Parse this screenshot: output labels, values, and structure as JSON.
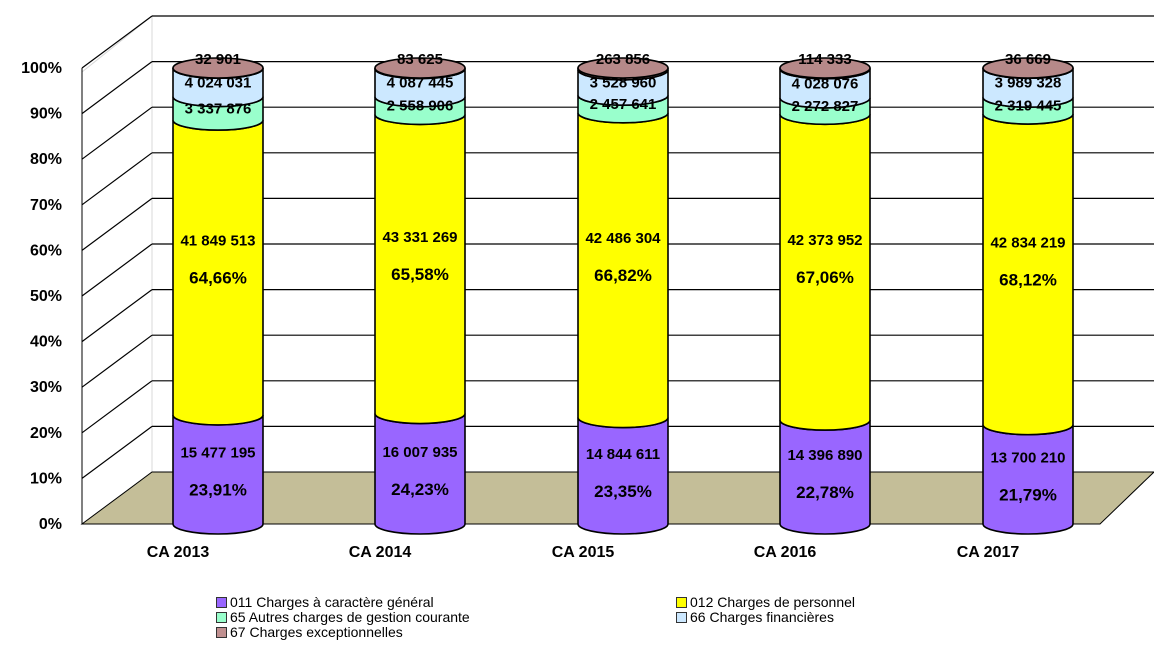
{
  "chart_data": {
    "type": "bar",
    "stacked": "percent",
    "style": "3d-cylinder",
    "categories": [
      "CA 2013",
      "CA 2014",
      "CA 2015",
      "CA 2016",
      "CA 2017"
    ],
    "y_ticks": [
      "0%",
      "10%",
      "20%",
      "30%",
      "40%",
      "50%",
      "60%",
      "70%",
      "80%",
      "90%",
      "100%"
    ],
    "ylim": [
      0,
      100
    ],
    "grid": true,
    "legend_position": "bottom",
    "series": [
      {
        "name": "011 Charges à caractère général",
        "color": "#9966ff",
        "values": [
          15477195,
          16007935,
          14844611,
          14396890,
          13700210
        ],
        "value_labels": [
          "15 477 195",
          "16 007 935",
          "14 844 611",
          "14 396 890",
          "13 700 210"
        ],
        "percent_labels": [
          "23,91%",
          "24,23%",
          "23,35%",
          "22,78%",
          "21,79%"
        ]
      },
      {
        "name": "012 Charges de personnel",
        "color": "#ffff00",
        "values": [
          41849513,
          43331269,
          42486304,
          42373952,
          42834219
        ],
        "value_labels": [
          "41 849 513",
          "43 331 269",
          "42 486 304",
          "42 373 952",
          "42 834 219"
        ],
        "percent_labels": [
          "64,66%",
          "65,58%",
          "66,82%",
          "67,06%",
          "68,12%"
        ]
      },
      {
        "name": "65 Autres charges de gestion courante",
        "color": "#99ffcc",
        "values": [
          3337876,
          2558906,
          2457641,
          2272827,
          2319445
        ],
        "value_labels": [
          "3 337 876",
          "2 558 906",
          "2 457 641",
          "2 272 827",
          "2 319 445"
        ]
      },
      {
        "name": "66 Charges financières",
        "color": "#cce8ff",
        "values": [
          4024031,
          4087445,
          3528960,
          4028076,
          3989328
        ],
        "value_labels": [
          "4 024 031",
          "4 087 445",
          "3 528 960",
          "4 028 076",
          "3 989 328"
        ]
      },
      {
        "name": "67 Charges exceptionnelles",
        "color": "#c09090",
        "values": [
          32901,
          83625,
          263856,
          114333,
          36669
        ],
        "value_labels": [
          "32 901",
          "83 625",
          "263 856",
          "114 333",
          "36 669"
        ]
      }
    ]
  }
}
